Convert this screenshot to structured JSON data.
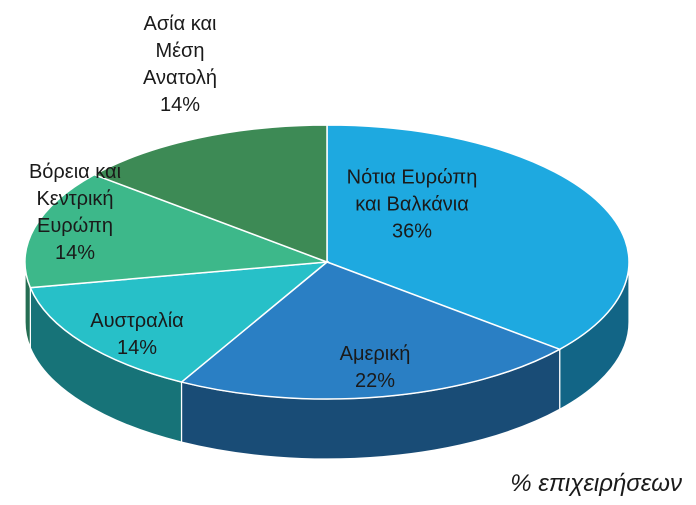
{
  "chart_data": {
    "type": "pie3d",
    "title": "% επιχειρήσεων",
    "categories": [
      "Νότια Ευρώπη και Βαλκάνια",
      "Αμερική",
      "Αυστραλία",
      "Βόρεια και Κεντρική Ευρώπη",
      "Ασία και Μέση Ανατολή"
    ],
    "values": [
      36,
      22,
      14,
      14,
      14
    ],
    "value_labels": [
      "36%",
      "22%",
      "14%",
      "14%",
      "14%"
    ],
    "colors": [
      "#1ea9e0",
      "#2a7fc4",
      "#27c0c8",
      "#3db88a",
      "#3d8a55"
    ]
  }
}
